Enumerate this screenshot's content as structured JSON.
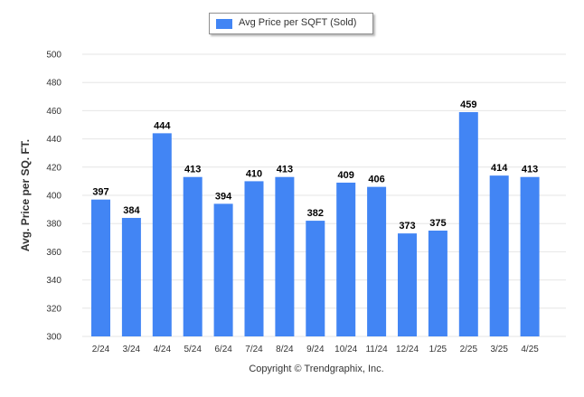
{
  "chart_data": {
    "type": "bar",
    "categories": [
      "2/24",
      "3/24",
      "4/24",
      "5/24",
      "6/24",
      "7/24",
      "8/24",
      "9/24",
      "10/24",
      "11/24",
      "12/24",
      "1/25",
      "2/25",
      "3/25",
      "4/25"
    ],
    "series": [
      {
        "name": "Avg Price per SQFT (Sold)",
        "values": [
          397,
          384,
          444,
          413,
          394,
          410,
          413,
          382,
          409,
          406,
          373,
          375,
          459,
          414,
          413
        ]
      }
    ],
    "ylabel": "Avg. Price per SQ. FT.",
    "xlabel": "",
    "ylim": [
      300,
      500
    ],
    "yticks": [
      300,
      320,
      340,
      360,
      380,
      400,
      420,
      440,
      460,
      480,
      500
    ],
    "grid": true,
    "legend_position": "top-center",
    "data_labels": true,
    "colors": {
      "bar": "#4285f4",
      "grid": "#e6e6e6",
      "axis_text": "#333333"
    }
  },
  "footer": {
    "copyright": "Copyright © Trendgraphix, Inc."
  }
}
